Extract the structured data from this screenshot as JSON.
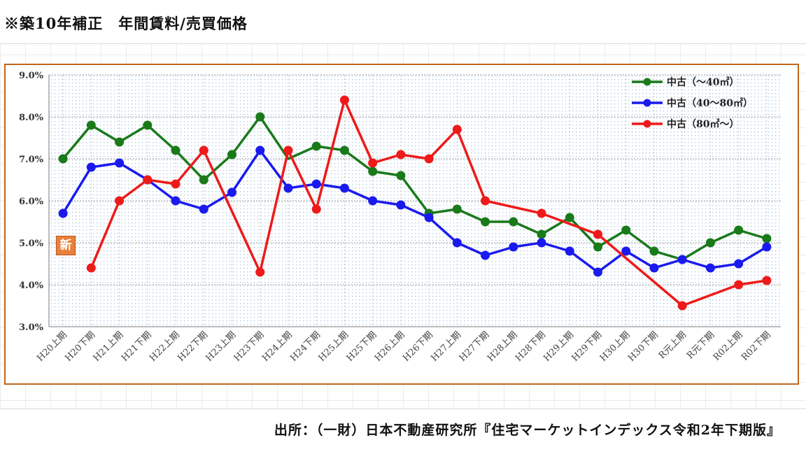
{
  "title": "※築10年補正　年間賃料/売買価格",
  "source": "出所：（一財）日本不動産研究所『住宅マーケットインデックス令和2年下期版』",
  "badge": "新",
  "chart_data": {
    "type": "line",
    "categories": [
      "H20上期",
      "H20下期",
      "H21上期",
      "H21下期",
      "H22上期",
      "H22下期",
      "H23上期",
      "H23下期",
      "H24上期",
      "H24下期",
      "H25上期",
      "H25下期",
      "H26上期",
      "H26下期",
      "H27上期",
      "H27下期",
      "H28上期",
      "H28下期",
      "H29上期",
      "H29下期",
      "H30上期",
      "H30下期",
      "R元上期",
      "R元下期",
      "R02上期",
      "R02下期"
    ],
    "ylim": [
      3.0,
      9.0
    ],
    "yticks": [
      "3.0%",
      "4.0%",
      "5.0%",
      "6.0%",
      "7.0%",
      "8.0%",
      "9.0%"
    ],
    "legend_position": "top-right",
    "grid": true,
    "series": [
      {
        "name": "中古（～40㎡）",
        "color": "#1a7a1a",
        "values": [
          7.0,
          7.8,
          7.4,
          7.8,
          7.2,
          6.5,
          7.1,
          8.0,
          7.0,
          7.3,
          7.2,
          6.7,
          6.6,
          5.7,
          5.8,
          5.5,
          5.5,
          5.2,
          5.6,
          4.9,
          5.3,
          4.8,
          4.6,
          5.0,
          5.3,
          5.1
        ],
        "markers": [
          0,
          1,
          2,
          3,
          4,
          5,
          6,
          7,
          9,
          10,
          11,
          12,
          13,
          14,
          15,
          16,
          17,
          18,
          19,
          20,
          21,
          23,
          24,
          25
        ]
      },
      {
        "name": "中古（40～80㎡）",
        "color": "#1a1aee",
        "values": [
          5.7,
          6.8,
          6.9,
          6.5,
          6.0,
          5.8,
          6.2,
          7.2,
          6.3,
          6.4,
          6.3,
          6.0,
          5.9,
          5.6,
          5.0,
          4.7,
          4.9,
          5.0,
          4.8,
          4.3,
          4.8,
          4.4,
          4.6,
          4.4,
          4.5,
          4.9
        ],
        "markers": [
          0,
          1,
          2,
          3,
          4,
          5,
          6,
          7,
          8,
          9,
          10,
          11,
          12,
          13,
          14,
          15,
          16,
          17,
          18,
          19,
          20,
          21,
          22,
          23,
          24,
          25
        ]
      },
      {
        "name": "中古（80㎡～）",
        "color": "#ee1a1a",
        "values": [
          null,
          4.4,
          6.0,
          6.5,
          6.4,
          7.2,
          null,
          4.3,
          7.2,
          5.8,
          8.4,
          6.9,
          7.1,
          7.0,
          7.7,
          6.0,
          null,
          5.7,
          null,
          5.2,
          null,
          null,
          3.5,
          null,
          4.0,
          4.1
        ],
        "markers": [
          1,
          2,
          3,
          4,
          5,
          7,
          8,
          9,
          10,
          11,
          12,
          13,
          14,
          15,
          17,
          19,
          22,
          24,
          25
        ]
      }
    ]
  }
}
